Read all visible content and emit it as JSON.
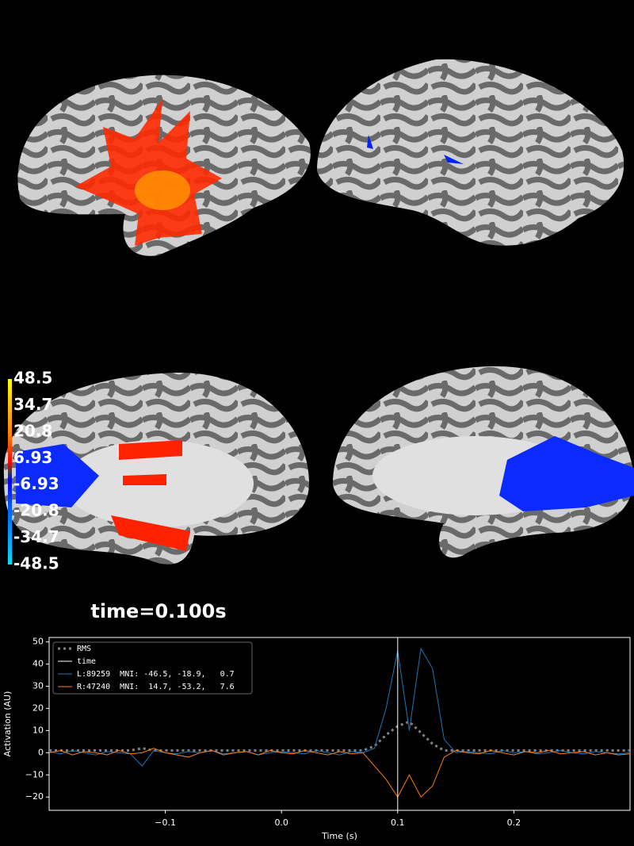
{
  "colorbar": {
    "ticks": [
      48.5,
      34.7,
      20.8,
      6.93,
      -6.93,
      -20.8,
      -34.7,
      -48.5
    ]
  },
  "time_label": "time=0.100s",
  "chart_data": {
    "type": "line",
    "xlabel": "Time (s)",
    "ylabel": "Activation (AU)",
    "x": [
      -0.2,
      -0.19,
      -0.18,
      -0.17,
      -0.16,
      -0.15,
      -0.14,
      -0.13,
      -0.12,
      -0.11,
      -0.1,
      -0.09,
      -0.08,
      -0.07,
      -0.06,
      -0.05,
      -0.04,
      -0.03,
      -0.02,
      -0.01,
      0,
      0.01,
      0.02,
      0.03,
      0.04,
      0.05,
      0.06,
      0.07,
      0.08,
      0.09,
      0.1,
      0.11,
      0.12,
      0.13,
      0.14,
      0.15,
      0.16,
      0.17,
      0.18,
      0.19,
      0.2,
      0.21,
      0.22,
      0.23,
      0.24,
      0.25,
      0.26,
      0.27,
      0.28,
      0.29,
      0.3
    ],
    "series": [
      {
        "name": "RMS",
        "color": "#808080",
        "values": [
          1,
          1,
          1,
          1,
          1,
          1,
          1,
          1,
          2,
          1,
          1,
          1,
          1,
          1,
          1,
          1,
          1,
          1,
          1,
          1,
          1,
          1,
          1,
          1,
          1,
          1,
          1,
          1,
          3,
          8,
          12,
          14,
          9,
          4,
          1,
          1,
          1,
          1,
          1,
          1,
          1,
          1,
          1,
          1,
          1,
          1,
          1,
          1,
          1,
          1,
          1
        ]
      },
      {
        "name": "L:89259  MNI: -46.5, -18.9,   0.7",
        "color": "#1f77b4",
        "values": [
          0.5,
          -0.5,
          1,
          0,
          -1,
          0.5,
          0,
          -0.5,
          -6,
          1,
          0,
          -0.5,
          0.5,
          0,
          1,
          -0.5,
          0,
          0.5,
          -1,
          0,
          0.5,
          0,
          -0.5,
          1,
          0,
          -1,
          0.5,
          0,
          2,
          20,
          46,
          10,
          47,
          38,
          6,
          0,
          0.5,
          0,
          -0.5,
          1,
          0,
          0.5,
          -0.5,
          0,
          1,
          0,
          -0.5,
          0.5,
          0,
          -0.5,
          0
        ]
      },
      {
        "name": "R:47240  MNI:  14.7, -53.2,   7.6",
        "color": "#ff7f0e",
        "values": [
          0,
          1,
          -1,
          0.5,
          0,
          -1,
          1,
          -0.5,
          0,
          2,
          0,
          -1,
          -2,
          0,
          1,
          -1,
          0,
          0.5,
          -1,
          1,
          0,
          -0.5,
          1,
          0,
          -1,
          0.5,
          -0.5,
          0,
          -6,
          -12,
          -20,
          -10,
          -20,
          -15,
          -2,
          1,
          0,
          -0.5,
          1,
          0,
          -1,
          0.5,
          0,
          1,
          -0.5,
          0,
          0.5,
          -1,
          0,
          -1,
          -0.5
        ]
      }
    ],
    "vlines": [
      {
        "name": "time",
        "color": "#ffffff",
        "x": 0.1
      }
    ],
    "xlim": [
      -0.2,
      0.3
    ],
    "ylim": [
      -26,
      52
    ],
    "xticks": [
      {
        "value": -0.1,
        "label": "−0.1"
      },
      {
        "value": 0,
        "label": "0.0"
      },
      0.1,
      0.2
    ],
    "yticks": [
      {
        "value": -20,
        "label": "−20"
      },
      {
        "value": -10,
        "label": "−10"
      },
      0,
      10,
      20,
      30,
      40,
      50
    ],
    "legend": "upper left"
  }
}
